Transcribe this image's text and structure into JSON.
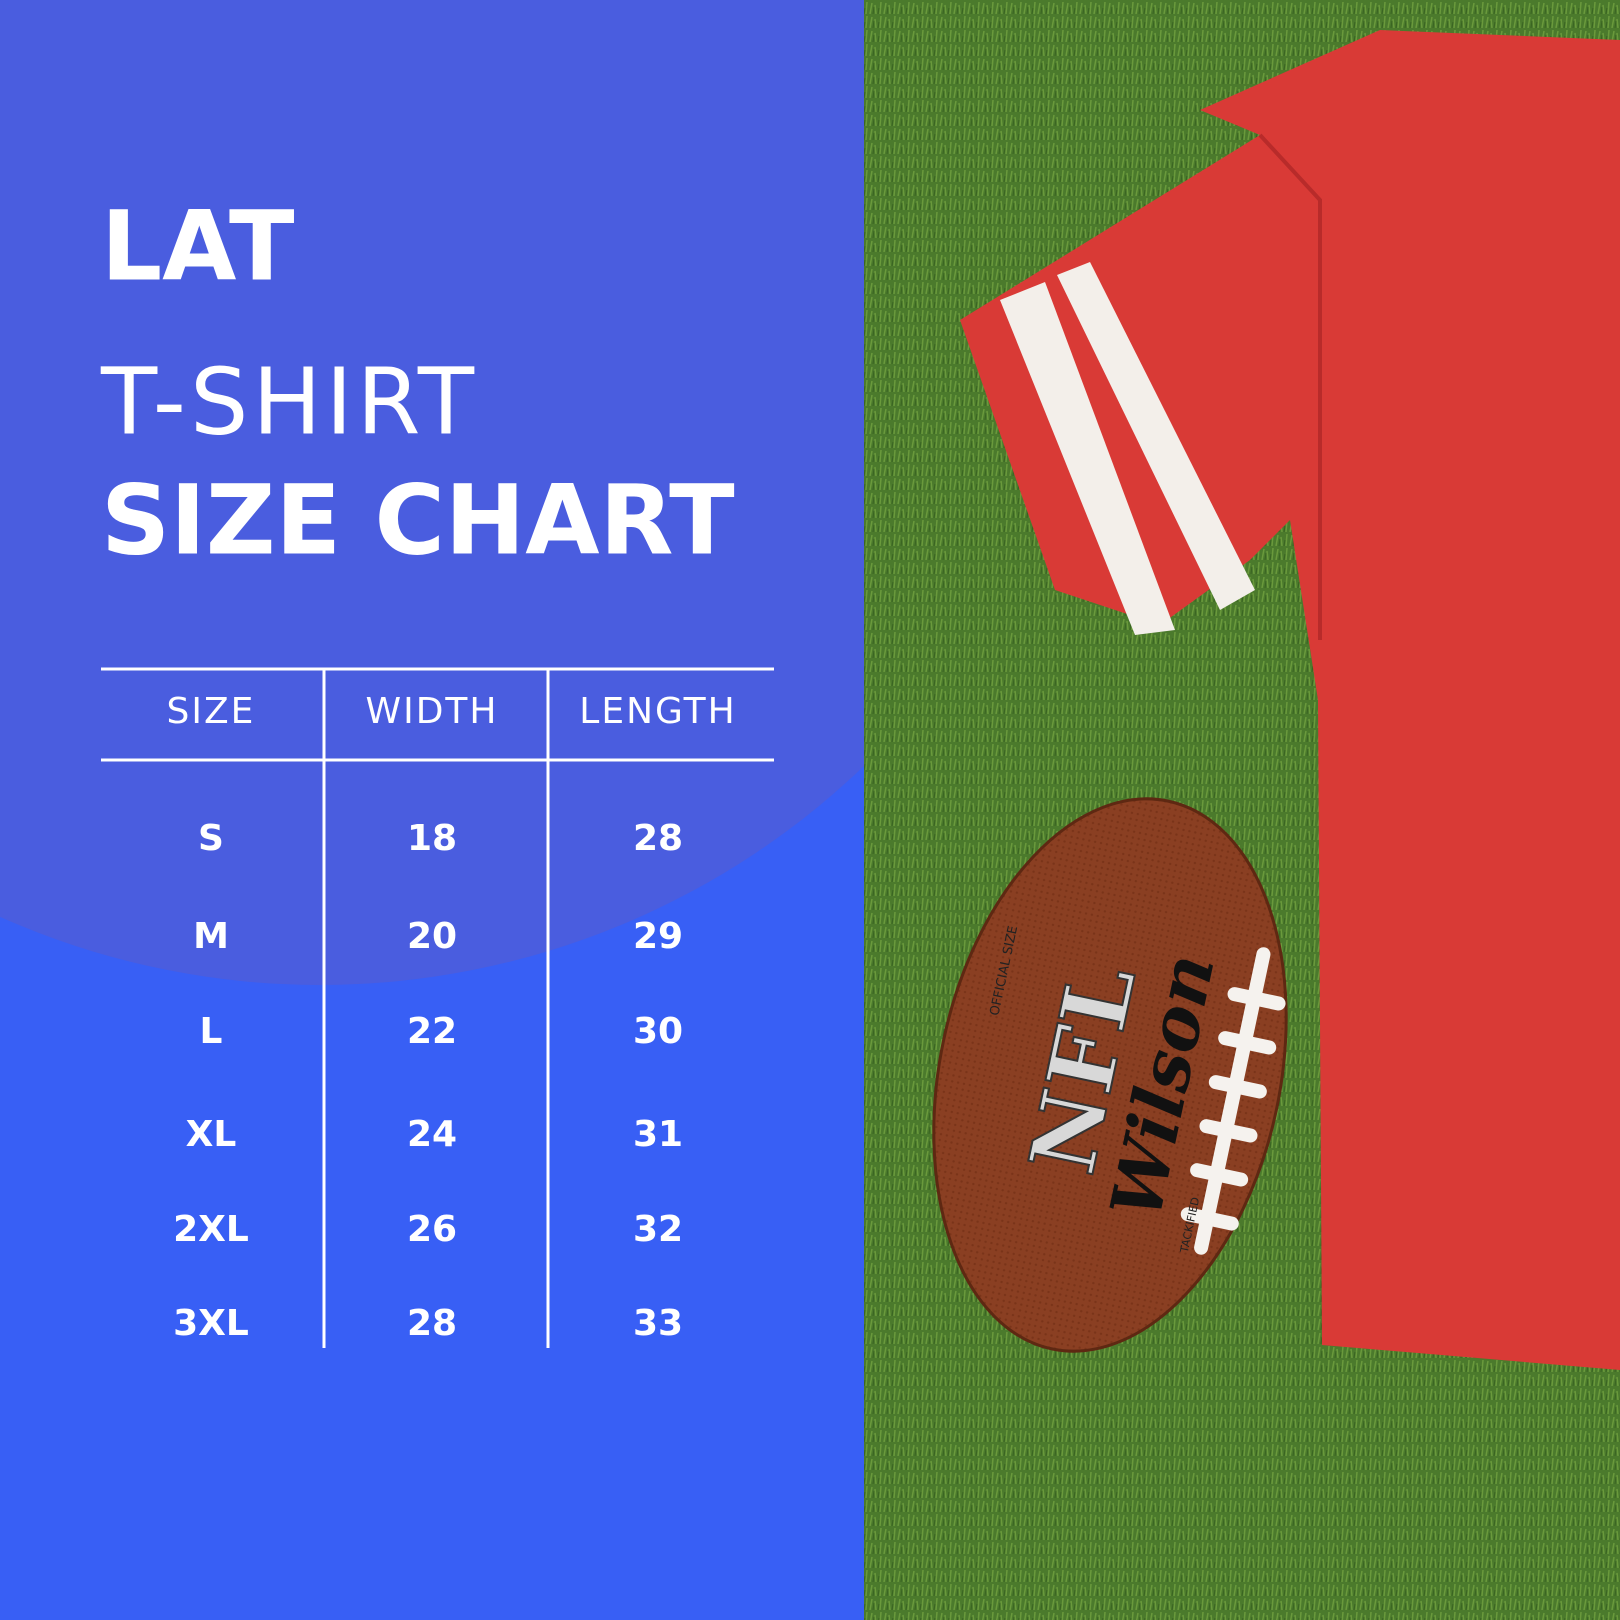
{
  "header": {
    "brand": "LAT",
    "line1": "T-SHIRT",
    "line2": "SIZE CHART"
  },
  "table": {
    "columns": [
      "SIZE",
      "WIDTH",
      "LENGTH"
    ],
    "rows": [
      [
        "S",
        18,
        28
      ],
      [
        "M",
        20,
        29
      ],
      [
        "L",
        22,
        30
      ],
      [
        "XL",
        24,
        31
      ],
      [
        "2XL",
        26,
        32
      ],
      [
        "3XL",
        28,
        33
      ]
    ]
  },
  "photo": {
    "ball_brand": "Wilson",
    "ball_league": "NFL",
    "ball_size": "OFFICIAL SIZE",
    "ball_grip": "TACKIFIED"
  }
}
